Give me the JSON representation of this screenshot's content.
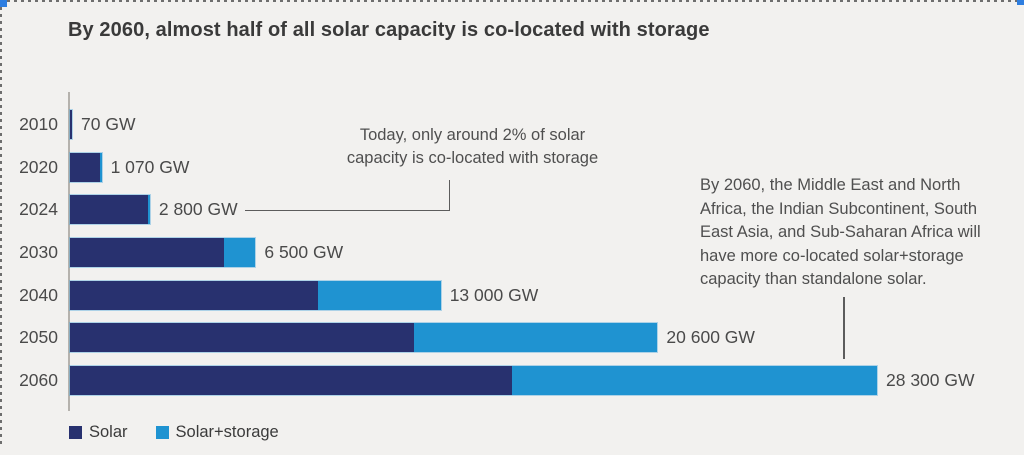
{
  "title": "By 2060, almost half of all solar capacity is co-located with storage",
  "chart_data": {
    "type": "bar",
    "orientation": "horizontal",
    "stacked": true,
    "grid": false,
    "legend_position": "bottom",
    "x_axis_max_gw": 28300,
    "categories": [
      "2010",
      "2020",
      "2024",
      "2030",
      "2040",
      "2050",
      "2060"
    ],
    "series": [
      {
        "name": "Solar",
        "color": "#28316f",
        "values_gw": [
          70,
          1055,
          2745,
          5400,
          8700,
          12050,
          15500
        ]
      },
      {
        "name": "Solar+storage",
        "color": "#1f93d1",
        "values_gw": [
          0,
          15,
          55,
          1100,
          4300,
          8550,
          12800
        ]
      }
    ],
    "totals_gw": [
      70,
      1070,
      2800,
      6500,
      13000,
      20600,
      28300
    ],
    "total_labels": [
      "70 GW",
      "1 070 GW",
      "2 800 GW",
      "6 500 GW",
      "13 000 GW",
      "20 600 GW",
      "28 300 GW"
    ]
  },
  "annotations": {
    "today_text": "Today, only around 2% of solar capacity is co-located with storage",
    "today_lines": [
      "Today, only around 2% of solar",
      "capacity is co-located with storage"
    ],
    "by2060_text": "By 2060, the Middle East and North Africa, the Indian Subcontinent, South East Asia, and Sub-Saharan Africa will have more co-located solar+storage capacity than standalone solar.",
    "by2060_lines": [
      "By 2060, the Middle East and North",
      "Africa, the Indian Subcontinent, South",
      "East Asia, and Sub-Saharan Africa will",
      "have more co-located solar+storage",
      "capacity than standalone solar."
    ]
  },
  "legend": {
    "items": [
      {
        "label": "Solar"
      },
      {
        "label": "Solar+storage"
      }
    ]
  },
  "colors": {
    "background": "#f2f1ef",
    "solar": "#28316f",
    "storage": "#1f93d1",
    "title_text": "#3a3a3a",
    "label_text": "#4a4a4a",
    "annotation_text": "#4f4f4f",
    "axis": "#b5b2ad",
    "connector": "#5c5c5c",
    "selection_handle": "#2e7ee0"
  }
}
